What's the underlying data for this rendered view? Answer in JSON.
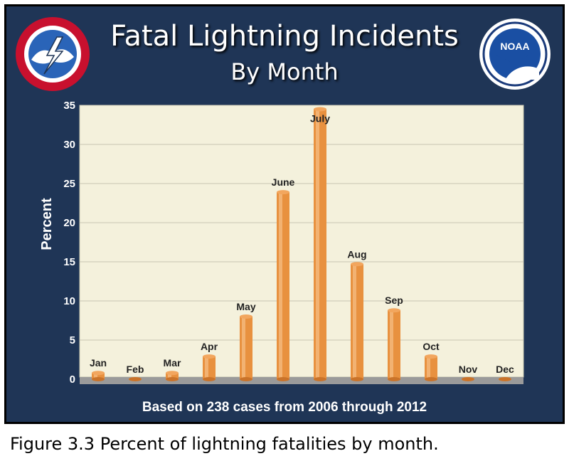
{
  "title_line1": "Fatal Lightning Incidents",
  "title_line2": "By Month",
  "footer_note": "Based on 238 cases from 2006 through 2012",
  "figure_caption": "Figure 3.3  Percent of lightning fatalities by month.",
  "colors": {
    "panel": "#1f3556",
    "plot_bg": "#f4f1dc",
    "bar": "#e8913f",
    "bar_highlight": "#f7c089",
    "floor": "#9a9a9a"
  },
  "chart_data": {
    "type": "bar",
    "title": "Fatal Lightning Incidents By Month",
    "ylabel": "Percent",
    "xlabel": "",
    "ylim": [
      0,
      35
    ],
    "yticks": [
      0,
      5,
      10,
      15,
      20,
      25,
      30,
      35
    ],
    "grid": true,
    "categories": [
      "Jan",
      "Feb",
      "Mar",
      "Apr",
      "May",
      "June",
      "July",
      "Aug",
      "Sep",
      "Oct",
      "Nov",
      "Dec"
    ],
    "values": [
      0.8,
      0,
      0.8,
      2.9,
      8.0,
      23.9,
      34.5,
      14.7,
      8.8,
      2.9,
      0,
      0
    ]
  }
}
